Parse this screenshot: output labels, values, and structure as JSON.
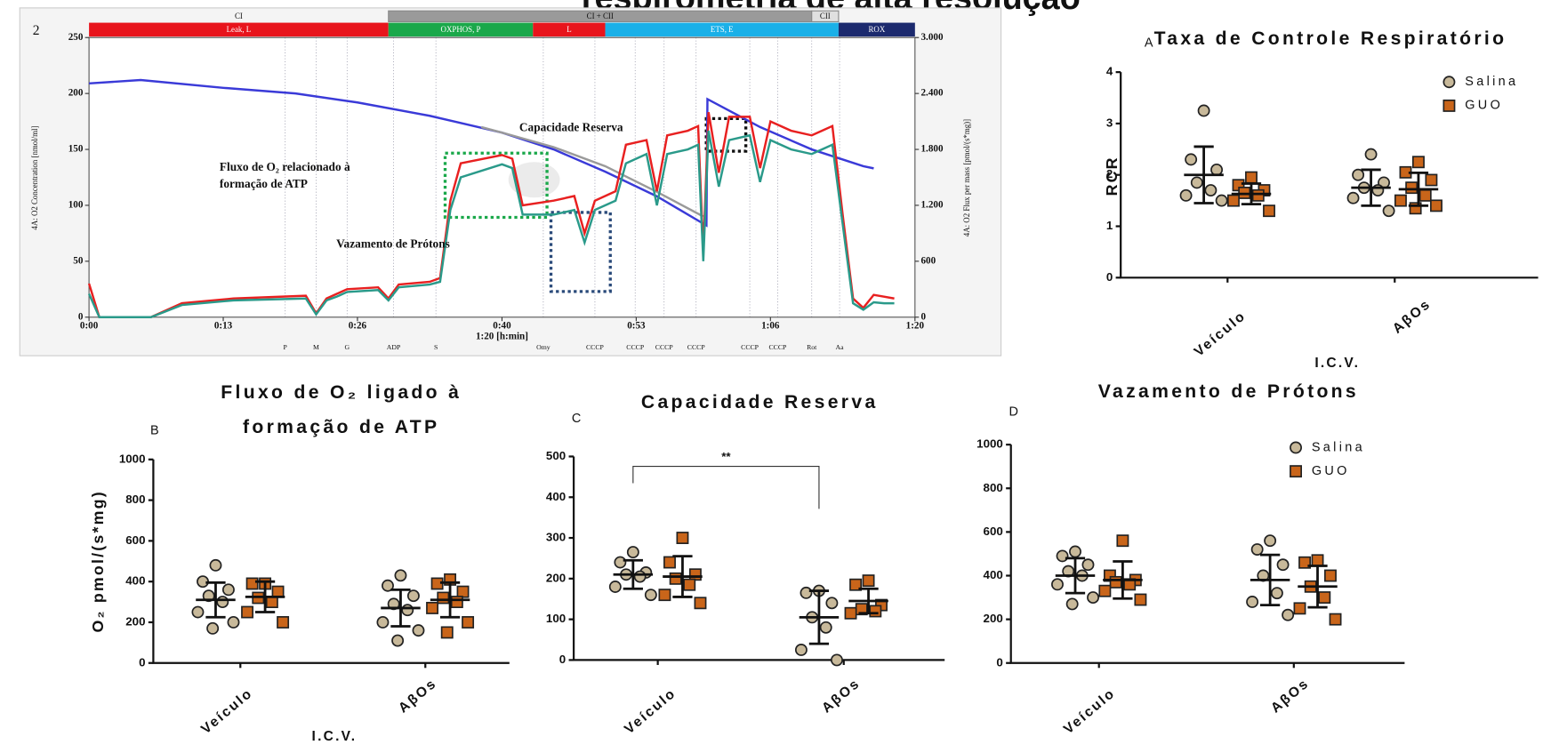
{
  "title": "respirometria de alta resolução",
  "chart_data": [
    {
      "type": "line",
      "panel": "2",
      "xlabel": "1:20 [h:min]",
      "ylabel": "4A: O2 Concentration [nmol/ml]",
      "y2label": "4A: O2 Flux per mass [pmol/(s*mg)]",
      "xlim": [
        0,
        80
      ],
      "xticks": [
        {
          "value": 0,
          "label": "0:00"
        },
        {
          "value": 13,
          "label": "0:13"
        },
        {
          "value": 26,
          "label": "0:26"
        },
        {
          "value": 40,
          "label": "0:40"
        },
        {
          "value": 53,
          "label": "0:53"
        },
        {
          "value": 66,
          "label": "1:06"
        },
        {
          "value": 80,
          "label": "1:20"
        }
      ],
      "ylim": [
        0,
        250
      ],
      "yticks": [
        0,
        50,
        100,
        150,
        200,
        250
      ],
      "y2lim": [
        0,
        3000
      ],
      "y2ticks": [
        0,
        600,
        {
          "value": 1200,
          "label": "1.200"
        },
        {
          "value": 1800,
          "label": "1.800"
        },
        {
          "value": 2400,
          "label": "2.400"
        },
        {
          "value": 3000,
          "label": "3.000"
        }
      ],
      "states": [
        {
          "label": "CI",
          "range": [
            0,
            29
          ]
        },
        {
          "label": "CI + CII",
          "range": [
            29,
            70
          ]
        },
        {
          "label": "CII",
          "range": [
            70,
            72.6
          ]
        }
      ],
      "phases": [
        {
          "label": "Leak, L",
          "color": "#e8141c",
          "range": [
            0,
            29
          ]
        },
        {
          "label": "OXPHOS, P",
          "color": "#1aa84a",
          "range": [
            29,
            43
          ]
        },
        {
          "label": "L",
          "color": "#e8141c",
          "range": [
            43,
            50
          ]
        },
        {
          "label": "ETS, E",
          "color": "#1ab0e8",
          "range": [
            50,
            72.6
          ]
        },
        {
          "label": "ROX",
          "color": "#1c2a6e",
          "range": [
            72.6,
            80
          ]
        }
      ],
      "events": [
        {
          "label": "P",
          "x": 19
        },
        {
          "label": "M",
          "x": 22
        },
        {
          "label": "G",
          "x": 25
        },
        {
          "label": "ADP",
          "x": 29.5
        },
        {
          "label": "S",
          "x": 33.6
        },
        {
          "label": "Omy",
          "x": 44
        },
        {
          "label": "CCCP",
          "x": 49
        },
        {
          "label": "CCCP",
          "x": 52.9
        },
        {
          "label": "CCCP",
          "x": 55.7
        },
        {
          "label": "CCCP",
          "x": 58.8
        },
        {
          "label": "CCCP",
          "x": 64
        },
        {
          "label": "CCCP",
          "x": 66.7
        },
        {
          "label": "Rot",
          "x": 70
        },
        {
          "label": "Aa",
          "x": 72.7
        }
      ],
      "annotations": [
        "Capacidade Reserva",
        "Fluxo de O₂ relacionado à",
        "formação de ATP",
        "Vazamento de Prótons"
      ],
      "series": [
        {
          "color": "#3a3ad8",
          "axis": "y",
          "x": [
            0,
            5,
            13,
            20,
            26,
            33,
            40,
            45,
            50,
            55,
            59.8,
            59.9,
            65,
            70,
            75,
            76
          ],
          "values": [
            209,
            212,
            205,
            200,
            192,
            180,
            165,
            150,
            130,
            108,
            82,
            195,
            170,
            150,
            135,
            133
          ]
        },
        {
          "color": "#9a9a9a",
          "axis": "y",
          "x": [
            38,
            40,
            45,
            50,
            55,
            59.5
          ],
          "values": [
            170,
            165,
            152,
            135,
            112,
            90
          ]
        },
        {
          "color": "#e82020",
          "axis": "y2",
          "x": [
            0,
            1,
            6,
            9,
            14,
            21,
            22,
            23,
            24,
            25,
            28,
            29,
            30,
            33,
            34,
            35,
            36,
            40,
            41,
            42,
            45,
            47,
            48,
            49,
            51,
            52,
            54,
            55,
            56,
            58,
            59,
            59.5,
            60,
            61,
            62,
            64,
            65,
            66,
            68,
            70,
            71,
            72,
            73,
            74,
            75,
            76,
            77,
            78
          ],
          "values": [
            360,
            0,
            0,
            150,
            200,
            230,
            40,
            200,
            250,
            300,
            320,
            200,
            350,
            380,
            420,
            1250,
            1650,
            1740,
            1700,
            1200,
            1250,
            1300,
            900,
            1250,
            1350,
            1850,
            1900,
            1350,
            1950,
            2000,
            2050,
            700,
            2200,
            1550,
            2150,
            2150,
            1600,
            2100,
            2000,
            1950,
            2000,
            2050,
            1100,
            200,
            100,
            240,
            220,
            200
          ]
        },
        {
          "color": "#2a9a8a",
          "axis": "y2",
          "x": [
            0,
            1,
            6,
            9,
            14,
            21,
            22,
            23,
            24,
            25,
            28,
            29,
            30,
            33,
            34,
            35,
            36,
            40,
            41,
            42,
            45,
            47,
            48,
            49,
            51,
            52,
            54,
            55,
            56,
            58,
            59,
            59.5,
            60,
            61,
            62,
            64,
            65,
            66,
            68,
            70,
            71,
            72,
            73,
            74,
            75,
            76,
            77,
            78
          ],
          "values": [
            250,
            0,
            0,
            130,
            180,
            200,
            30,
            180,
            220,
            270,
            290,
            180,
            320,
            350,
            380,
            1150,
            1500,
            1640,
            1600,
            1100,
            1100,
            1150,
            800,
            1150,
            1250,
            1650,
            1750,
            1200,
            1750,
            1800,
            1850,
            600,
            2000,
            1400,
            1900,
            1950,
            1450,
            1900,
            1800,
            1750,
            1800,
            1850,
            1000,
            150,
            80,
            160,
            150,
            150
          ]
        }
      ]
    },
    {
      "type": "dotplot",
      "panel": "A",
      "title": "Taxa de Controle Respiratório",
      "ylabel": "RCR",
      "xlabel": "I.C.V.",
      "categories": [
        "Veículo",
        "AβOs"
      ],
      "ylim": [
        0,
        4
      ],
      "yticks": [
        0,
        1,
        2,
        3,
        4
      ],
      "legend": "upper right",
      "series": [
        {
          "name": "Salina",
          "color": "#c8b99a",
          "marker": "circle",
          "values": [
            [
              3.25,
              2.3,
              2.1,
              1.85,
              1.7,
              1.6,
              1.5
            ],
            [
              2.4,
              2.0,
              1.85,
              1.75,
              1.7,
              1.55,
              1.3
            ]
          ],
          "mean": [
            2.0,
            1.75
          ],
          "sd": [
            0.55,
            0.35
          ]
        },
        {
          "name": "GUO",
          "color": "#c9651a",
          "marker": "square",
          "values": [
            [
              1.95,
              1.8,
              1.7,
              1.65,
              1.6,
              1.5,
              1.3
            ],
            [
              2.25,
              2.05,
              1.9,
              1.75,
              1.6,
              1.5,
              1.4,
              1.35
            ]
          ],
          "mean": [
            1.63,
            1.72
          ],
          "sd": [
            0.2,
            0.32
          ]
        }
      ]
    },
    {
      "type": "dotplot",
      "panel": "B",
      "title": [
        "Fluxo de O₂ ligado à",
        "formação de ATP"
      ],
      "ylabel": "O₂ pmol/(s*mg)",
      "xlabel": "I.C.V.",
      "categories": [
        "Veículo",
        "AβOs"
      ],
      "ylim": [
        0,
        1000
      ],
      "yticks": [
        0,
        200,
        400,
        600,
        800,
        1000
      ],
      "series": [
        {
          "color": "#c8b99a",
          "marker": "circle",
          "values": [
            [
              480,
              400,
              360,
              330,
              300,
              250,
              200,
              170
            ],
            [
              430,
              380,
              330,
              290,
              260,
              200,
              160,
              110
            ]
          ],
          "mean": [
            310,
            270
          ],
          "sd": [
            85,
            90
          ]
        },
        {
          "color": "#c9651a",
          "marker": "square",
          "values": [
            [
              390,
              390,
              350,
              320,
              300,
              250,
              200
            ],
            [
              410,
              390,
              350,
              320,
              300,
              270,
              200,
              150
            ]
          ],
          "mean": [
            325,
            310
          ],
          "sd": [
            75,
            85
          ]
        }
      ]
    },
    {
      "type": "dotplot",
      "panel": "C",
      "title": "Capacidade Reserva",
      "significance": "**",
      "categories": [
        "Veículo",
        "AβOs"
      ],
      "ylim": [
        0,
        500
      ],
      "yticks": [
        0,
        100,
        200,
        300,
        400,
        500
      ],
      "series": [
        {
          "color": "#c8b99a",
          "marker": "circle",
          "values": [
            [
              265,
              240,
              215,
              210,
              205,
              180,
              160
            ],
            [
              170,
              165,
              140,
              105,
              80,
              25,
              0
            ]
          ],
          "mean": [
            210,
            105
          ],
          "sd": [
            35,
            65
          ]
        },
        {
          "color": "#c9651a",
          "marker": "square",
          "values": [
            [
              300,
              240,
              210,
              200,
              185,
              160,
              140
            ],
            [
              195,
              185,
              135,
              125,
              120,
              115
            ]
          ],
          "mean": [
            205,
            145
          ],
          "sd": [
            50,
            30
          ]
        }
      ]
    },
    {
      "type": "dotplot",
      "panel": "D",
      "title": "Vazamento de Prótons",
      "categories": [
        "Veículo",
        "AβOs"
      ],
      "ylim": [
        0,
        1000
      ],
      "yticks": [
        0,
        200,
        400,
        600,
        800,
        1000
      ],
      "legend": "upper right",
      "series": [
        {
          "name": "Salina",
          "color": "#c8b99a",
          "marker": "circle",
          "values": [
            [
              510,
              490,
              450,
              420,
              400,
              360,
              300,
              270
            ],
            [
              560,
              520,
              450,
              400,
              320,
              280,
              220
            ]
          ],
          "mean": [
            400,
            380
          ],
          "sd": [
            80,
            115
          ]
        },
        {
          "name": "GUO",
          "color": "#c9651a",
          "marker": "square",
          "values": [
            [
              560,
              400,
              380,
              370,
              360,
              330,
              290
            ],
            [
              470,
              460,
              400,
              350,
              300,
              250,
              200
            ]
          ],
          "mean": [
            380,
            350
          ],
          "sd": [
            85,
            95
          ]
        }
      ]
    }
  ]
}
